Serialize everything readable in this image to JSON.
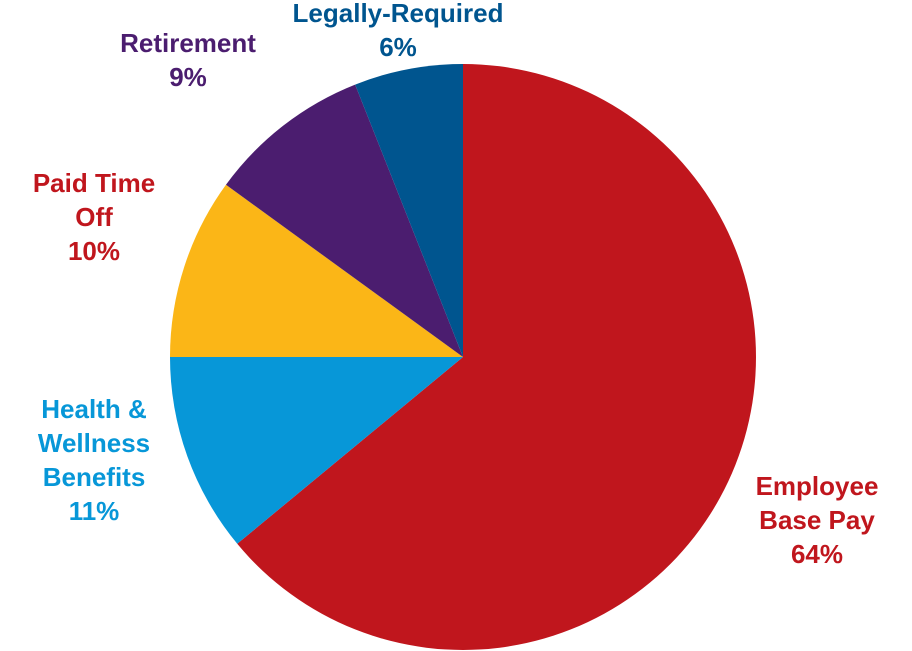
{
  "chart_data": {
    "type": "pie",
    "title": "",
    "start_angle_deg": 0,
    "direction": "clockwise",
    "slices": [
      {
        "label_lines": [
          "Employee",
          "Base Pay"
        ],
        "value": 64,
        "value_label": "64%",
        "color": "#c0161d",
        "label_color": "#c0161d"
      },
      {
        "label_lines": [
          "Health &",
          "Wellness",
          "Benefits"
        ],
        "value": 11,
        "value_label": "11%",
        "color": "#0797d8",
        "label_color": "#0797d8"
      },
      {
        "label_lines": [
          "Paid Time",
          "Off"
        ],
        "value": 10,
        "value_label": "10%",
        "color": "#fbb617",
        "label_color": "#c0161d"
      },
      {
        "label_lines": [
          "Retirement"
        ],
        "value": 9,
        "value_label": "9%",
        "color": "#4b1d6f",
        "label_color": "#4b1d6f"
      },
      {
        "label_lines": [
          "Legally-Required"
        ],
        "value": 6,
        "value_label": "6%",
        "color": "#00558f",
        "label_color": "#00558f"
      }
    ]
  }
}
